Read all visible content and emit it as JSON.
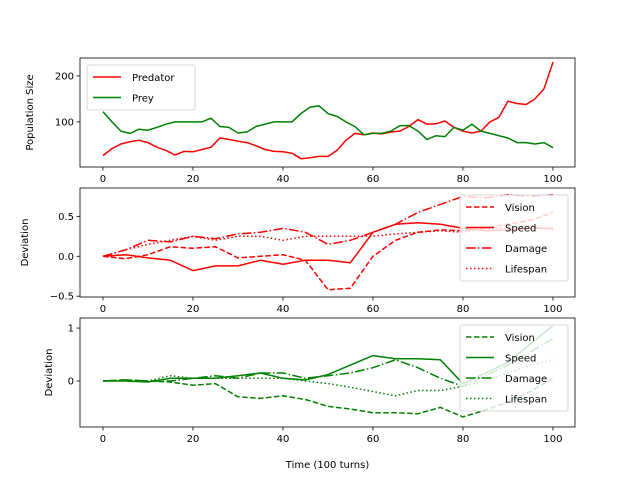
{
  "chart_data": [
    {
      "type": "line",
      "title": "",
      "xlabel": "",
      "ylabel": "Population Size",
      "xlim": [
        -5.1,
        104.9
      ],
      "ylim": [
        2,
        239
      ],
      "xticks": [
        0,
        20,
        40,
        60,
        80,
        100
      ],
      "xtick_labels": [
        "0",
        "20",
        "40",
        "60",
        "80",
        "100"
      ],
      "yticks": [
        100,
        200
      ],
      "ytick_labels": [
        "100",
        "200"
      ],
      "legend_loc": "upper-left",
      "x": [
        0,
        2,
        4,
        6,
        8,
        10,
        12,
        14,
        16,
        18,
        20,
        22,
        24,
        26,
        28,
        30,
        32,
        34,
        36,
        38,
        40,
        42,
        44,
        46,
        48,
        50,
        52,
        54,
        56,
        58,
        60,
        62,
        64,
        66,
        68,
        70,
        72,
        74,
        76,
        78,
        80,
        82,
        84,
        86,
        88,
        90,
        92,
        94,
        96,
        98,
        100
      ],
      "series": [
        {
          "name": "Predator",
          "color": "#ff0000",
          "style": "solid",
          "values": [
            27,
            42,
            52,
            57,
            60,
            55,
            45,
            38,
            28,
            36,
            35,
            40,
            45,
            65,
            62,
            58,
            55,
            48,
            40,
            36,
            35,
            32,
            20,
            22,
            25,
            25,
            38,
            60,
            75,
            72,
            76,
            74,
            78,
            80,
            90,
            105,
            95,
            96,
            102,
            88,
            80,
            76,
            80,
            100,
            110,
            145,
            140,
            138,
            150,
            172,
            230
          ]
        },
        {
          "name": "Prey",
          "color": "#008000",
          "style": "solid",
          "values": [
            122,
            100,
            80,
            75,
            84,
            82,
            88,
            95,
            100,
            100,
            100,
            100,
            108,
            90,
            88,
            76,
            78,
            90,
            95,
            100,
            100,
            100,
            118,
            132,
            135,
            118,
            112,
            100,
            90,
            72,
            75,
            75,
            80,
            92,
            92,
            80,
            62,
            70,
            68,
            88,
            82,
            95,
            80,
            75,
            70,
            65,
            55,
            55,
            52,
            55,
            44
          ]
        }
      ]
    },
    {
      "type": "line",
      "title": "",
      "xlabel": "",
      "ylabel": "Deviation",
      "xlim": [
        -5.1,
        104.9
      ],
      "ylim": [
        -0.51,
        0.855
      ],
      "xticks": [
        0,
        20,
        40,
        60,
        80,
        100
      ],
      "xtick_labels": [
        "0",
        "20",
        "40",
        "60",
        "80",
        "100"
      ],
      "yticks": [
        -0.5,
        0,
        0.5
      ],
      "ytick_labels": [
        "−0.5",
        "0.0",
        "0.5"
      ],
      "legend_loc": "upper-right",
      "x": [
        0,
        5,
        10,
        15,
        20,
        25,
        30,
        35,
        40,
        45,
        50,
        55,
        60,
        65,
        70,
        75,
        80,
        85,
        90,
        95,
        100
      ],
      "series": [
        {
          "name": "Vision",
          "color": "#ff0000",
          "style": "dashed",
          "values": [
            0,
            -0.03,
            0.02,
            0.12,
            0.1,
            0.12,
            -0.02,
            0,
            0.02,
            -0.05,
            -0.42,
            -0.4,
            0,
            0.2,
            0.3,
            0.33,
            0.32,
            0.35,
            0.4,
            0.45,
            0.55
          ]
        },
        {
          "name": "Speed",
          "color": "#ff0000",
          "style": "solid",
          "values": [
            0,
            0.02,
            -0.02,
            -0.05,
            -0.18,
            -0.12,
            -0.12,
            -0.05,
            -0.1,
            -0.05,
            -0.05,
            -0.08,
            0.3,
            0.4,
            0.42,
            0.4,
            0.35,
            0.32,
            0.33,
            0.35,
            0.35
          ]
        },
        {
          "name": "Damage",
          "color": "#ff0000",
          "style": "dashdot",
          "values": [
            0,
            0.08,
            0.2,
            0.18,
            0.25,
            0.22,
            0.28,
            0.3,
            0.35,
            0.3,
            0.15,
            0.2,
            0.3,
            0.4,
            0.55,
            0.65,
            0.75,
            0.73,
            0.77,
            0.75,
            0.77
          ]
        },
        {
          "name": "Lifespan",
          "color": "#ff0000",
          "style": "dotted",
          "values": [
            0,
            0.08,
            0.15,
            0.2,
            0.25,
            0.2,
            0.25,
            0.25,
            0.2,
            0.25,
            0.25,
            0.25,
            0.25,
            0.28,
            0.3,
            0.32,
            0.3,
            0.35,
            0.35,
            0.38,
            0.33
          ]
        }
      ]
    },
    {
      "type": "line",
      "title": "",
      "xlabel": "Time (100 turns)",
      "ylabel": "Deviation",
      "xlim": [
        -5.1,
        104.9
      ],
      "ylim": [
        -0.87,
        1.19
      ],
      "xticks": [
        0,
        20,
        40,
        60,
        80,
        100
      ],
      "xtick_labels": [
        "0",
        "20",
        "40",
        "60",
        "80",
        "100"
      ],
      "yticks": [
        0,
        1
      ],
      "ytick_labels": [
        "0",
        "1"
      ],
      "legend_loc": "upper-right",
      "x": [
        0,
        5,
        10,
        15,
        20,
        25,
        30,
        35,
        40,
        45,
        50,
        55,
        60,
        65,
        70,
        75,
        80,
        85,
        90,
        95,
        100
      ],
      "series": [
        {
          "name": "Vision",
          "color": "#008000",
          "style": "dashed",
          "values": [
            0,
            0.02,
            0,
            -0.02,
            -0.08,
            -0.05,
            -0.3,
            -0.33,
            -0.28,
            -0.35,
            -0.48,
            -0.53,
            -0.6,
            -0.6,
            -0.62,
            -0.5,
            -0.68,
            -0.55,
            -0.4,
            -0.2,
            0.05
          ]
        },
        {
          "name": "Speed",
          "color": "#008000",
          "style": "solid",
          "values": [
            0,
            0,
            -0.02,
            0.05,
            0.05,
            0.05,
            0.1,
            0.15,
            0.05,
            0.02,
            0.12,
            0.3,
            0.48,
            0.42,
            0.42,
            0.4,
            -0.05,
            0.15,
            0.35,
            0.7,
            1.05
          ]
        },
        {
          "name": "Damage",
          "color": "#008000",
          "style": "dashdot",
          "values": [
            0,
            0.02,
            0,
            0,
            0.05,
            0.1,
            0.05,
            0.15,
            0.15,
            0.05,
            0.1,
            0.15,
            0.25,
            0.4,
            0.25,
            0.05,
            -0.1,
            0.1,
            0.3,
            0.55,
            0.8
          ]
        },
        {
          "name": "Lifespan",
          "color": "#008000",
          "style": "dotted",
          "values": [
            0,
            0.02,
            0,
            0.1,
            0.05,
            0.05,
            0.05,
            0.05,
            0.05,
            0,
            -0.05,
            -0.12,
            -0.2,
            -0.28,
            -0.18,
            -0.18,
            -0.1,
            0,
            0.15,
            0.3,
            0.4
          ]
        }
      ]
    }
  ]
}
